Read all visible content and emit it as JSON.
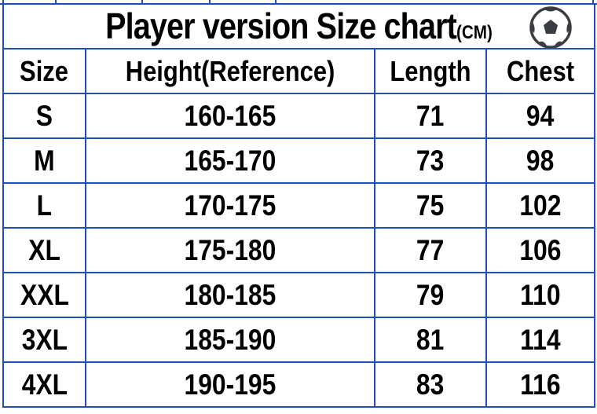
{
  "title": {
    "main": "Player version Size chart",
    "unit": "(CM)",
    "icon": "soccer-ball-icon"
  },
  "colors": {
    "border": "#1f4fb5",
    "text": "#000000",
    "ball": "#3a3d42"
  },
  "table": {
    "headers": [
      "Size",
      "Height(Reference)",
      "Length",
      "Chest"
    ],
    "rows": [
      [
        "S",
        "160-165",
        "71",
        "94"
      ],
      [
        "M",
        "165-170",
        "73",
        "98"
      ],
      [
        "L",
        "170-175",
        "75",
        "102"
      ],
      [
        "XL",
        "175-180",
        "77",
        "106"
      ],
      [
        "XXL",
        "180-185",
        "79",
        "110"
      ],
      [
        "3XL",
        "185-190",
        "81",
        "114"
      ],
      [
        "4XL",
        "190-195",
        "83",
        "116"
      ]
    ]
  }
}
